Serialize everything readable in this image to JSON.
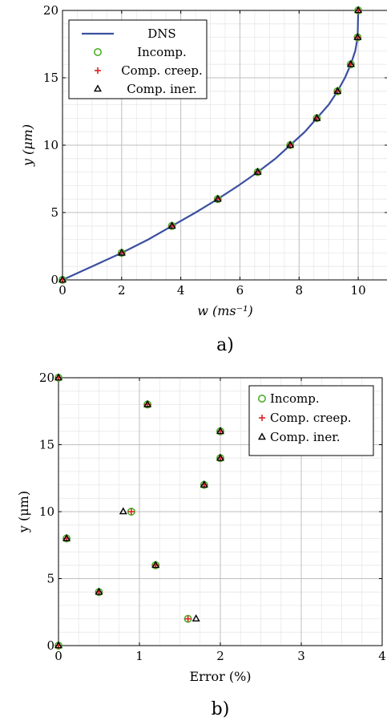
{
  "chart_data": [
    {
      "type": "line",
      "caption": "a)",
      "xlabel": "w (ms⁻¹)",
      "ylabel": "y (μm)",
      "xlim": [
        0,
        11
      ],
      "ylim": [
        0,
        20
      ],
      "x_ticks": [
        0,
        2,
        4,
        6,
        8,
        10
      ],
      "y_ticks": [
        0,
        5,
        10,
        15,
        20
      ],
      "grid": true,
      "legend_position": "top-left",
      "series": [
        {
          "name": "DNS",
          "kind": "line",
          "color": "#3b4fa0",
          "x": [
            0,
            1.0,
            2.0,
            2.9,
            3.7,
            4.5,
            5.25,
            5.95,
            6.6,
            7.2,
            7.7,
            8.2,
            8.6,
            9.0,
            9.3,
            9.55,
            9.75,
            9.9,
            9.98,
            10.0
          ],
          "y": [
            0,
            1.0,
            2.0,
            3.0,
            4.0,
            5.0,
            6.0,
            7.0,
            8.0,
            9.0,
            10.0,
            11.0,
            12.0,
            13.0,
            14.0,
            15.0,
            16.0,
            17.0,
            18.0,
            20.0
          ]
        },
        {
          "name": "Incomp.",
          "kind": "circle",
          "color": "#4caf2a",
          "x": [
            0,
            2.0,
            3.7,
            5.25,
            6.6,
            7.7,
            8.6,
            9.3,
            9.75,
            9.98,
            10.0
          ],
          "y": [
            0,
            2,
            4,
            6,
            8,
            10,
            12,
            14,
            16,
            18,
            20
          ]
        },
        {
          "name": "Comp. creep.",
          "kind": "plus",
          "color": "#e02020",
          "x": [
            0,
            2.0,
            3.7,
            5.25,
            6.6,
            7.7,
            8.6,
            9.3,
            9.75,
            9.98,
            10.0
          ],
          "y": [
            0,
            2,
            4,
            6,
            8,
            10,
            12,
            14,
            16,
            18,
            20
          ]
        },
        {
          "name": "Comp. iner.",
          "kind": "triangle",
          "color": "#000000",
          "x": [
            0,
            2.0,
            3.7,
            5.25,
            6.6,
            7.7,
            8.6,
            9.3,
            9.75,
            9.98,
            10.0
          ],
          "y": [
            0,
            2,
            4,
            6,
            8,
            10,
            12,
            14,
            16,
            18,
            20
          ]
        }
      ]
    },
    {
      "type": "scatter",
      "caption": "b)",
      "xlabel": "Error (%)",
      "ylabel": "y (μm)",
      "xlim": [
        0,
        4
      ],
      "ylim": [
        0,
        20
      ],
      "x_ticks": [
        0,
        1,
        2,
        3,
        4
      ],
      "y_ticks": [
        0,
        5,
        10,
        15,
        20
      ],
      "grid": true,
      "legend_position": "top-right",
      "series": [
        {
          "name": "Incomp.",
          "kind": "circle",
          "color": "#4caf2a",
          "x": [
            0,
            1.6,
            0.5,
            1.2,
            0.1,
            0.9,
            1.8,
            2.0,
            2.0,
            1.1,
            0
          ],
          "y": [
            0,
            2,
            4,
            6,
            8,
            10,
            12,
            14,
            16,
            18,
            20
          ]
        },
        {
          "name": "Comp. creep.",
          "kind": "plus",
          "color": "#e02020",
          "x": [
            0,
            1.6,
            0.5,
            1.2,
            0.1,
            0.9,
            1.8,
            2.0,
            2.0,
            1.1,
            0
          ],
          "y": [
            0,
            2,
            4,
            6,
            8,
            10,
            12,
            14,
            16,
            18,
            20
          ]
        },
        {
          "name": "Comp. iner.",
          "kind": "triangle",
          "color": "#000000",
          "x": [
            0,
            1.7,
            0.5,
            1.2,
            0.1,
            0.8,
            1.8,
            2.0,
            2.0,
            1.1,
            0
          ],
          "y": [
            0,
            2,
            4,
            6,
            8,
            10,
            12,
            14,
            16,
            18,
            20
          ]
        }
      ]
    }
  ]
}
